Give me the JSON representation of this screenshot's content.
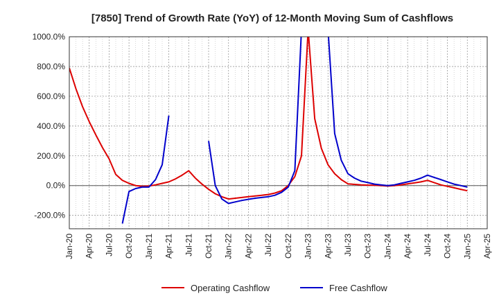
{
  "chart_data": {
    "type": "line",
    "title": "[7850]  Trend of Growth Rate (YoY) of 12-Month Moving Sum of Cashflows",
    "xlabel": "",
    "ylabel": "",
    "ylim": [
      -290,
      1000
    ],
    "y_ticks": [
      1000,
      800,
      600,
      400,
      200,
      0,
      -200
    ],
    "y_tick_labels": [
      "1000.0%",
      "800.0%",
      "600.0%",
      "400.0%",
      "200.0%",
      "0.0%",
      "-200.0%"
    ],
    "x_ticks": [
      "2020-01",
      "2020-04",
      "2020-07",
      "2020-10",
      "2021-01",
      "2021-04",
      "2021-07",
      "2021-10",
      "2022-01",
      "2022-04",
      "2022-07",
      "2022-10",
      "2023-01",
      "2023-04",
      "2023-07",
      "2023-10",
      "2024-01",
      "2024-04",
      "2024-07",
      "2024-10",
      "2025-01",
      "2025-04"
    ],
    "x_tick_labels": [
      "Jan-20",
      "Apr-20",
      "Jul-20",
      "Oct-20",
      "Jan-21",
      "Apr-21",
      "Jul-21",
      "Oct-21",
      "Jan-22",
      "Apr-22",
      "Jul-22",
      "Oct-22",
      "Jan-23",
      "Apr-23",
      "Jul-23",
      "Oct-23",
      "Jan-24",
      "Apr-24",
      "Jul-24",
      "Oct-24",
      "Jan-25",
      "Apr-25"
    ],
    "grid": true,
    "legend_position": "bottom",
    "series": [
      {
        "name": "Operating Cashflow",
        "color": "#dd0000",
        "points": [
          [
            "2020-01",
            790
          ],
          [
            "2020-02",
            650
          ],
          [
            "2020-03",
            530
          ],
          [
            "2020-04",
            430
          ],
          [
            "2020-05",
            340
          ],
          [
            "2020-06",
            255
          ],
          [
            "2020-07",
            180
          ],
          [
            "2020-08",
            75
          ],
          [
            "2020-09",
            35
          ],
          [
            "2020-10",
            15
          ],
          [
            "2020-11",
            0
          ],
          [
            "2020-12",
            -5
          ],
          [
            "2021-01",
            -3
          ],
          [
            "2021-02",
            5
          ],
          [
            "2021-03",
            15
          ],
          [
            "2021-04",
            25
          ],
          [
            "2021-05",
            45
          ],
          [
            "2021-06",
            70
          ],
          [
            "2021-07",
            100
          ],
          [
            "2021-08",
            50
          ],
          [
            "2021-09",
            10
          ],
          [
            "2021-10",
            -25
          ],
          [
            "2021-11",
            -55
          ],
          [
            "2021-12",
            -75
          ],
          [
            "2022-01",
            -90
          ],
          [
            "2022-02",
            -85
          ],
          [
            "2022-03",
            -80
          ],
          [
            "2022-04",
            -75
          ],
          [
            "2022-05",
            -70
          ],
          [
            "2022-06",
            -65
          ],
          [
            "2022-07",
            -60
          ],
          [
            "2022-08",
            -50
          ],
          [
            "2022-09",
            -35
          ],
          [
            "2022-10",
            0
          ],
          [
            "2022-11",
            60
          ],
          [
            "2022-12",
            200
          ],
          [
            "2023-01",
            1050
          ],
          [
            "2023-02",
            450
          ],
          [
            "2023-03",
            250
          ],
          [
            "2023-04",
            140
          ],
          [
            "2023-05",
            80
          ],
          [
            "2023-06",
            40
          ],
          [
            "2023-07",
            12
          ],
          [
            "2023-08",
            8
          ],
          [
            "2023-09",
            5
          ],
          [
            "2023-10",
            3
          ],
          [
            "2023-11",
            2
          ],
          [
            "2023-12",
            0
          ],
          [
            "2024-01",
            -3
          ],
          [
            "2024-02",
            0
          ],
          [
            "2024-03",
            5
          ],
          [
            "2024-04",
            12
          ],
          [
            "2024-05",
            18
          ],
          [
            "2024-06",
            25
          ],
          [
            "2024-07",
            35
          ],
          [
            "2024-08",
            20
          ],
          [
            "2024-09",
            5
          ],
          [
            "2024-10",
            -5
          ],
          [
            "2024-11",
            -15
          ],
          [
            "2024-12",
            -25
          ],
          [
            "2025-01",
            -35
          ]
        ]
      },
      {
        "name": "Free Cashflow",
        "color": "#0000cc",
        "segments": [
          [
            [
              "2020-09",
              -255
            ],
            [
              "2020-10",
              -40
            ],
            [
              "2020-11",
              -20
            ],
            [
              "2020-12",
              -10
            ],
            [
              "2021-01",
              -10
            ],
            [
              "2021-02",
              40
            ],
            [
              "2021-03",
              140
            ],
            [
              "2021-04",
              470
            ]
          ],
          [
            [
              "2021-10",
              300
            ],
            [
              "2021-11",
              0
            ],
            [
              "2021-12",
              -90
            ],
            [
              "2022-01",
              -120
            ],
            [
              "2022-02",
              -110
            ],
            [
              "2022-03",
              -100
            ],
            [
              "2022-04",
              -92
            ],
            [
              "2022-05",
              -85
            ],
            [
              "2022-06",
              -80
            ],
            [
              "2022-07",
              -75
            ],
            [
              "2022-08",
              -65
            ],
            [
              "2022-09",
              -45
            ],
            [
              "2022-10",
              -10
            ],
            [
              "2022-11",
              100
            ],
            [
              "2022-12",
              1050
            ],
            [
              "2023-04",
              1050
            ],
            [
              "2023-05",
              350
            ],
            [
              "2023-06",
              170
            ],
            [
              "2023-07",
              80
            ],
            [
              "2023-08",
              50
            ],
            [
              "2023-09",
              30
            ],
            [
              "2023-10",
              20
            ],
            [
              "2023-11",
              10
            ],
            [
              "2023-12",
              5
            ],
            [
              "2024-01",
              0
            ],
            [
              "2024-02",
              5
            ],
            [
              "2024-03",
              15
            ],
            [
              "2024-04",
              25
            ],
            [
              "2024-05",
              35
            ],
            [
              "2024-06",
              50
            ],
            [
              "2024-07",
              70
            ],
            [
              "2024-08",
              55
            ],
            [
              "2024-09",
              40
            ],
            [
              "2024-10",
              25
            ],
            [
              "2024-11",
              10
            ],
            [
              "2024-12",
              0
            ],
            [
              "2025-01",
              -10
            ]
          ]
        ]
      }
    ]
  }
}
